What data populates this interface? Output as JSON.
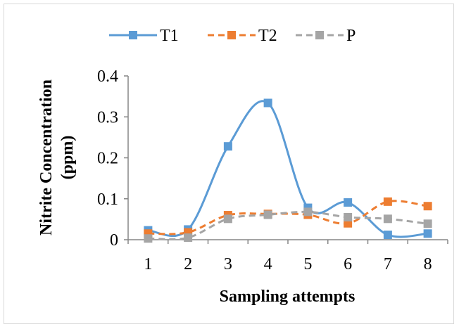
{
  "chart_data": {
    "type": "line",
    "categories": [
      "1",
      "2",
      "3",
      "4",
      "5",
      "6",
      "7",
      "8"
    ],
    "series": [
      {
        "name": "T1",
        "values": [
          0.023,
          0.025,
          0.228,
          0.334,
          0.078,
          0.091,
          0.012,
          0.015
        ],
        "color": "#5b9bd5",
        "style": "solid smooth",
        "marker": "square"
      },
      {
        "name": "T2",
        "values": [
          0.015,
          0.018,
          0.06,
          0.063,
          0.061,
          0.04,
          0.093,
          0.082
        ],
        "color": "#ed7d31",
        "style": "dashed smooth",
        "marker": "square"
      },
      {
        "name": "P",
        "values": [
          0.003,
          0.005,
          0.051,
          0.061,
          0.068,
          0.055,
          0.051,
          0.039
        ],
        "color": "#a5a5a5",
        "style": "dashed smooth",
        "marker": "square"
      }
    ],
    "xlabel": "Sampling attempts",
    "ylabel_line1": "Nitrite Concentration",
    "ylabel_line2": "(ppm)",
    "ylim": [
      0,
      0.4
    ],
    "yticks": [
      "0",
      "0.1",
      "0.2",
      "0.3",
      "0.4"
    ],
    "grid": false,
    "legend_position": "top"
  }
}
